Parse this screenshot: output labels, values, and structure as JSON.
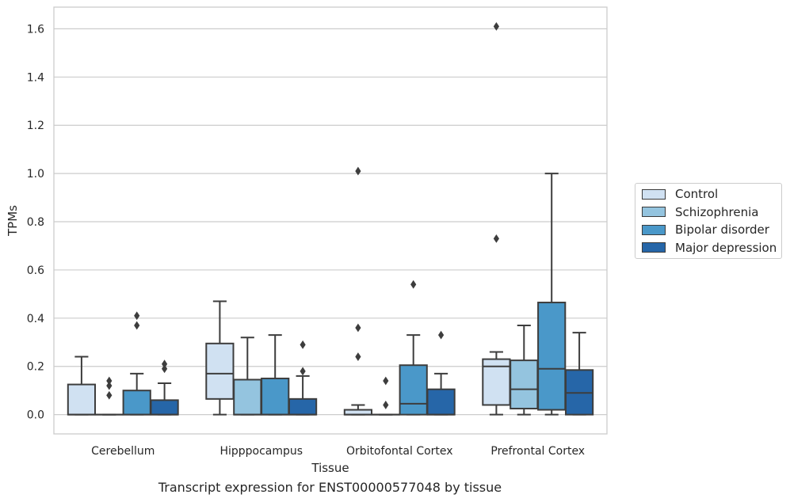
{
  "chart_data": {
    "type": "box",
    "title": "",
    "xlabel": "Tissue",
    "ylabel": "TPMs",
    "caption": "Transcript expression for ENST00000577048 by tissue",
    "ylim": [
      -0.08,
      1.69
    ],
    "yticks": [
      0.0,
      0.2,
      0.4,
      0.6,
      0.8,
      1.0,
      1.2,
      1.4,
      1.6
    ],
    "ytick_labels": [
      "0.0",
      "0.2",
      "0.4",
      "0.6",
      "0.8",
      "1.0",
      "1.2",
      "1.4",
      "1.6"
    ],
    "grid": true,
    "legend_position": "right",
    "categories": [
      "Cerebellum",
      "Hipppocampus",
      "Orbitofontal Cortex",
      "Prefrontal Cortex"
    ],
    "series": [
      {
        "name": "Control",
        "color": "#d0e1f2",
        "boxes": [
          {
            "whislo": 0.0,
            "q1": 0.0,
            "med": 0.0,
            "q3": 0.125,
            "whishi": 0.24,
            "fliers": []
          },
          {
            "whislo": 0.0,
            "q1": 0.065,
            "med": 0.17,
            "q3": 0.295,
            "whishi": 0.47,
            "fliers": []
          },
          {
            "whislo": 0.0,
            "q1": 0.0,
            "med": 0.0,
            "q3": 0.02,
            "whishi": 0.04,
            "fliers": [
              0.24,
              0.36,
              1.01
            ]
          },
          {
            "whislo": 0.0,
            "q1": 0.04,
            "med": 0.2,
            "q3": 0.23,
            "whishi": 0.26,
            "fliers": [
              0.73,
              1.61
            ]
          }
        ]
      },
      {
        "name": "Schizophrenia",
        "color": "#94c4df",
        "boxes": [
          {
            "whislo": 0.0,
            "q1": 0.0,
            "med": 0.0,
            "q3": 0.0,
            "whishi": 0.0,
            "fliers": [
              0.08,
              0.12,
              0.14
            ]
          },
          {
            "whislo": 0.0,
            "q1": 0.0,
            "med": 0.0,
            "q3": 0.145,
            "whishi": 0.32,
            "fliers": []
          },
          {
            "whislo": 0.0,
            "q1": 0.0,
            "med": 0.0,
            "q3": 0.0,
            "whishi": 0.0,
            "fliers": [
              0.04,
              0.14
            ]
          },
          {
            "whislo": 0.0,
            "q1": 0.025,
            "med": 0.105,
            "q3": 0.225,
            "whishi": 0.37,
            "fliers": []
          }
        ]
      },
      {
        "name": "Bipolar disorder",
        "color": "#4a98c9",
        "boxes": [
          {
            "whislo": 0.0,
            "q1": 0.0,
            "med": 0.0,
            "q3": 0.1,
            "whishi": 0.17,
            "fliers": [
              0.37,
              0.41
            ]
          },
          {
            "whislo": 0.0,
            "q1": 0.0,
            "med": 0.0,
            "q3": 0.15,
            "whishi": 0.33,
            "fliers": []
          },
          {
            "whislo": 0.0,
            "q1": 0.0,
            "med": 0.045,
            "q3": 0.205,
            "whishi": 0.33,
            "fliers": [
              0.54
            ]
          },
          {
            "whislo": 0.0,
            "q1": 0.02,
            "med": 0.19,
            "q3": 0.465,
            "whishi": 1.0,
            "fliers": []
          }
        ]
      },
      {
        "name": "Major depression",
        "color": "#2666a8",
        "boxes": [
          {
            "whislo": 0.0,
            "q1": 0.0,
            "med": 0.0,
            "q3": 0.06,
            "whishi": 0.13,
            "fliers": [
              0.19,
              0.21
            ]
          },
          {
            "whislo": 0.0,
            "q1": 0.0,
            "med": 0.0,
            "q3": 0.065,
            "whishi": 0.16,
            "fliers": [
              0.18,
              0.29
            ]
          },
          {
            "whislo": 0.0,
            "q1": 0.0,
            "med": 0.0,
            "q3": 0.105,
            "whishi": 0.17,
            "fliers": [
              0.33
            ]
          },
          {
            "whislo": 0.0,
            "q1": 0.0,
            "med": 0.09,
            "q3": 0.185,
            "whishi": 0.34,
            "fliers": []
          }
        ]
      }
    ]
  }
}
